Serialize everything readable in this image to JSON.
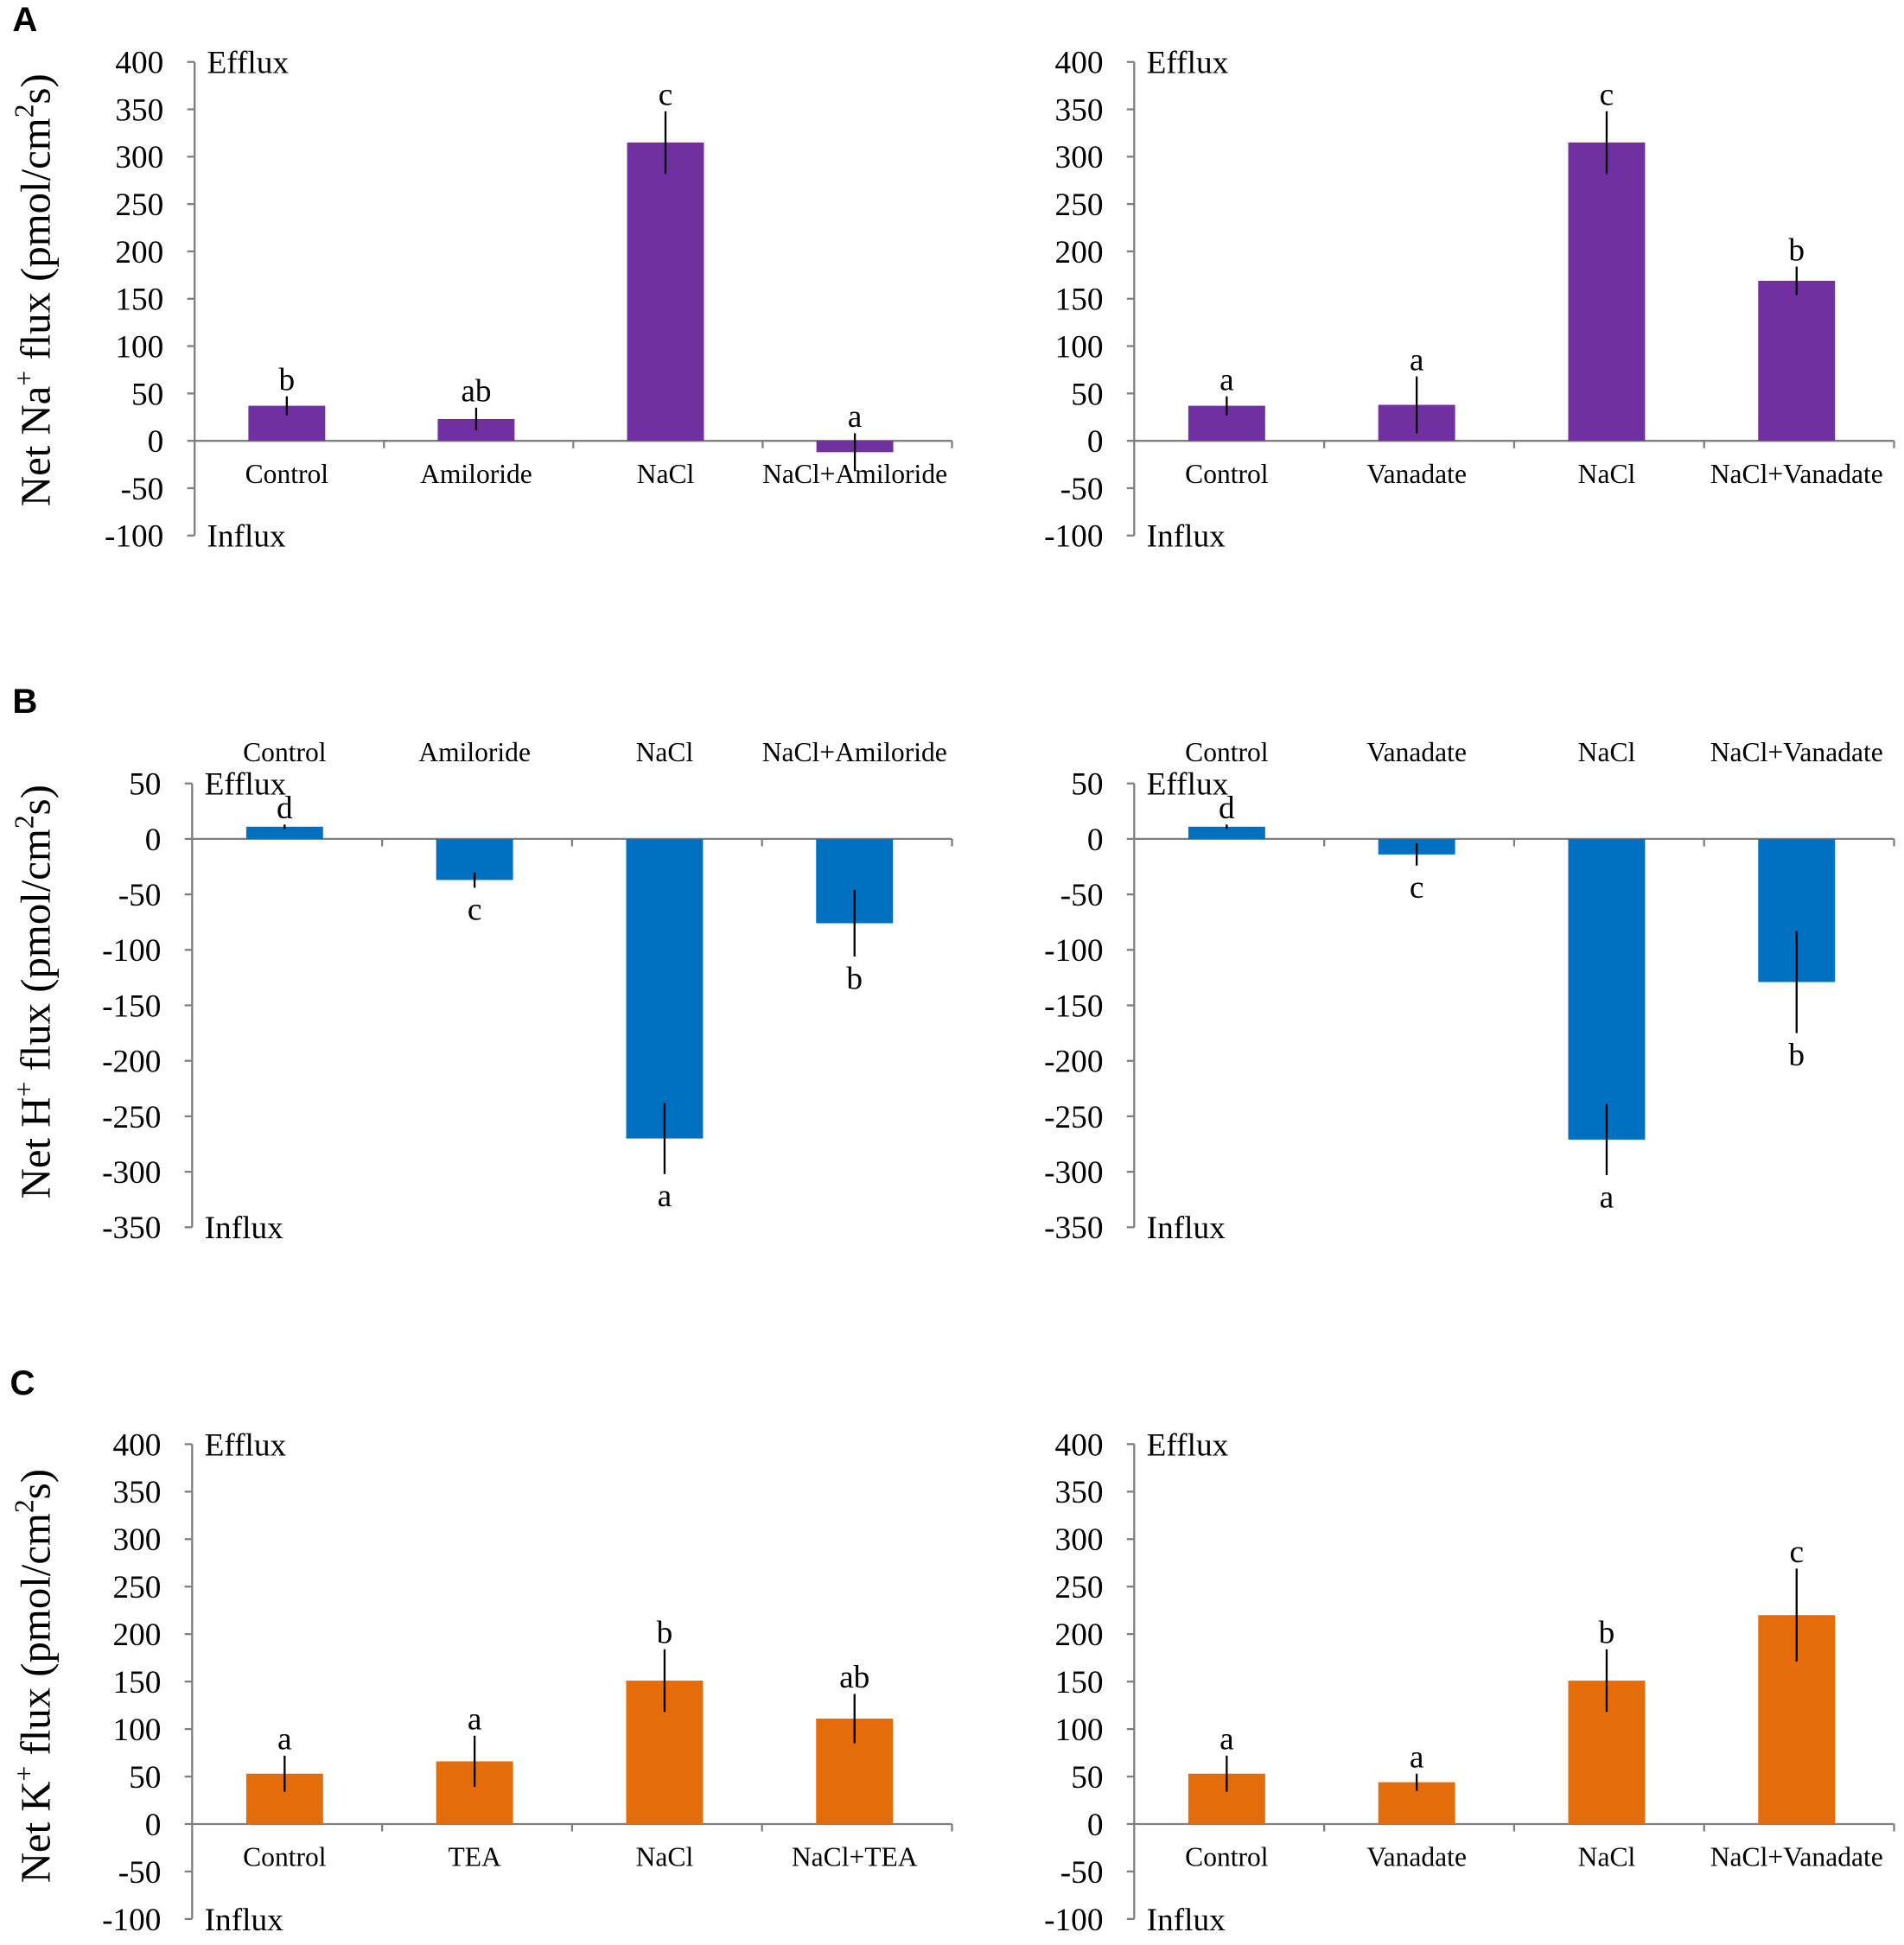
{
  "panels": [
    {
      "label": "A",
      "ylabel": {
        "pre": "Net Na",
        "sup1": "+",
        "mid": " flux (pmol/cm",
        "sup2": "2",
        "post": "s)"
      }
    },
    {
      "label": "B",
      "ylabel": {
        "pre": "Net H",
        "sup1": "+",
        "mid": " flux (pmol/cm",
        "sup2": "2",
        "post": "s)"
      }
    },
    {
      "label": "C",
      "ylabel": {
        "pre": "Net K",
        "sup1": "+",
        "mid": " flux (pmol/cm",
        "sup2": "2",
        "post": "s)"
      }
    }
  ],
  "chart_data": [
    {
      "type": "bar",
      "categories": [
        "Control",
        "Amiloride",
        "NaCl",
        "NaCl+Amiloride"
      ],
      "values": [
        37,
        23,
        315,
        -12
      ],
      "errors": [
        10,
        12,
        33,
        20
      ],
      "letters": [
        "b",
        "ab",
        "c",
        "a"
      ],
      "ylim": [
        -100,
        400
      ],
      "yticks": [
        400,
        350,
        300,
        250,
        200,
        150,
        100,
        50,
        0,
        -50,
        -100
      ],
      "top_label": "Efflux",
      "bottom_label": "Influx",
      "color": "#7030A0",
      "category_label_position": "below-axis",
      "letter_placement": "above",
      "grid": false
    },
    {
      "type": "bar",
      "categories": [
        "Control",
        "Vanadate",
        "NaCl",
        "NaCl+Vanadate"
      ],
      "values": [
        37,
        38,
        315,
        169
      ],
      "errors": [
        10,
        30,
        33,
        15
      ],
      "letters": [
        "a",
        "a",
        "c",
        "b"
      ],
      "ylim": [
        -100,
        400
      ],
      "yticks": [
        400,
        350,
        300,
        250,
        200,
        150,
        100,
        50,
        0,
        -50,
        -100
      ],
      "top_label": "Efflux",
      "bottom_label": "Influx",
      "color": "#7030A0",
      "category_label_position": "below-axis",
      "letter_placement": "above",
      "grid": false
    },
    {
      "type": "bar",
      "categories": [
        "Control",
        "Amiloride",
        "NaCl",
        "NaCl+Amiloride"
      ],
      "values": [
        11,
        -37,
        -270,
        -76
      ],
      "errors": [
        2,
        7,
        32,
        30
      ],
      "letters": [
        "d",
        "c",
        "a",
        "b"
      ],
      "ylim": [
        -350,
        50
      ],
      "yticks": [
        50,
        0,
        -50,
        -100,
        -150,
        -200,
        -250,
        -300,
        -350
      ],
      "top_label": "Efflux",
      "bottom_label": "Influx",
      "color": "#0070C0",
      "category_label_position": "top",
      "letter_placement": "by-sign",
      "grid": false
    },
    {
      "type": "bar",
      "categories": [
        "Control",
        "Vanadate",
        "NaCl",
        "NaCl+Vanadate"
      ],
      "values": [
        11,
        -14,
        -271,
        -129
      ],
      "errors": [
        2,
        10,
        32,
        46
      ],
      "letters": [
        "d",
        "c",
        "a",
        "b"
      ],
      "ylim": [
        -350,
        50
      ],
      "yticks": [
        50,
        0,
        -50,
        -100,
        -150,
        -200,
        -250,
        -300,
        -350
      ],
      "top_label": "Efflux",
      "bottom_label": "Influx",
      "color": "#0070C0",
      "category_label_position": "top",
      "letter_placement": "by-sign",
      "grid": false
    },
    {
      "type": "bar",
      "categories": [
        "Control",
        "TEA",
        "NaCl",
        "NaCl+TEA"
      ],
      "values": [
        53,
        66,
        151,
        111
      ],
      "errors": [
        19,
        27,
        33,
        26
      ],
      "letters": [
        "a",
        "a",
        "b",
        "ab"
      ],
      "ylim": [
        -100,
        400
      ],
      "yticks": [
        400,
        350,
        300,
        250,
        200,
        150,
        100,
        50,
        0,
        -50,
        -100
      ],
      "top_label": "Efflux",
      "bottom_label": "Influx",
      "color": "#E46C0A",
      "category_label_position": "below-axis",
      "letter_placement": "above",
      "grid": false
    },
    {
      "type": "bar",
      "categories": [
        "Control",
        "Vanadate",
        "NaCl",
        "NaCl+Vanadate"
      ],
      "values": [
        53,
        44,
        151,
        220
      ],
      "errors": [
        19,
        9,
        33,
        49
      ],
      "letters": [
        "a",
        "a",
        "b",
        "c"
      ],
      "ylim": [
        -100,
        400
      ],
      "yticks": [
        400,
        350,
        300,
        250,
        200,
        150,
        100,
        50,
        0,
        -50,
        -100
      ],
      "top_label": "Efflux",
      "bottom_label": "Influx",
      "color": "#E46C0A",
      "category_label_position": "below-axis",
      "letter_placement": "above",
      "grid": false
    }
  ]
}
